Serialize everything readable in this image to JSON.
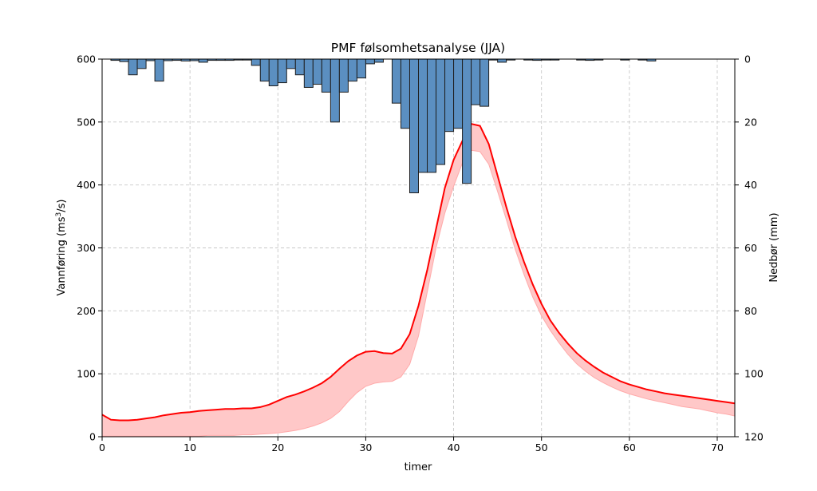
{
  "chart_data": {
    "type": "line",
    "title": "PMF følsomhetsanalyse (JJA)",
    "xlabel": "timer",
    "ylabel_left_prefix": "Vannføring (ms",
    "ylabel_left_sup": "3",
    "ylabel_left_suffix": "/s)",
    "ylabel_right": "Nedbør (mm)",
    "xlim": [
      0,
      72
    ],
    "ylim_left": [
      0,
      600
    ],
    "ylim_right": [
      0,
      120
    ],
    "right_axis_inverted": true,
    "x_ticks": [
      "0",
      "10",
      "20",
      "30",
      "40",
      "50",
      "60",
      "70"
    ],
    "y_left_ticks": [
      "0",
      "100",
      "200",
      "300",
      "400",
      "500",
      "600"
    ],
    "y_right_ticks": [
      "0",
      "20",
      "40",
      "60",
      "80",
      "100",
      "120"
    ],
    "grid": true,
    "colors": {
      "line": "#ff0000",
      "band": "#ffc8c8",
      "band_edge": "#ffaaaa",
      "bars": "#5b8fc1",
      "bar_edge": "#1f1f1f",
      "grid": "#c8c8c8"
    },
    "series": [
      {
        "kind": "line",
        "x": [
          0,
          1,
          2,
          3,
          4,
          5,
          6,
          7,
          8,
          9,
          10,
          11,
          12,
          13,
          14,
          15,
          16,
          17,
          18,
          19,
          20,
          21,
          22,
          23,
          24,
          25,
          26,
          27,
          28,
          29,
          30,
          31,
          32,
          33,
          34,
          35,
          36,
          37,
          38,
          39,
          40,
          41,
          42,
          43,
          44,
          45,
          46,
          47,
          48,
          49,
          50,
          51,
          52,
          53,
          54,
          55,
          56,
          57,
          58,
          59,
          60,
          61,
          62,
          63,
          64,
          65,
          66,
          67,
          68,
          69,
          70,
          71,
          72
        ],
        "y": [
          35,
          27,
          26,
          26,
          27,
          29,
          31,
          34,
          36,
          38,
          39,
          41,
          42,
          43,
          44,
          44,
          45,
          45,
          47,
          51,
          57,
          63,
          67,
          72,
          78,
          85,
          95,
          108,
          120,
          129,
          135,
          136,
          133,
          132,
          140,
          163,
          208,
          265,
          330,
          395,
          440,
          470,
          497,
          494,
          465,
          415,
          365,
          318,
          278,
          242,
          211,
          185,
          165,
          148,
          133,
          121,
          111,
          102,
          95,
          88,
          83,
          79,
          75,
          72,
          69,
          67,
          65,
          63,
          61,
          59,
          57,
          55,
          53
        ]
      },
      {
        "kind": "band",
        "x": [
          0,
          1,
          2,
          3,
          4,
          5,
          6,
          7,
          8,
          9,
          10,
          11,
          12,
          13,
          14,
          15,
          16,
          17,
          18,
          19,
          20,
          21,
          22,
          23,
          24,
          25,
          26,
          27,
          28,
          29,
          30,
          31,
          32,
          33,
          34,
          35,
          36,
          37,
          38,
          39,
          40,
          41,
          42,
          43,
          44,
          45,
          46,
          47,
          48,
          49,
          50,
          51,
          52,
          53,
          54,
          55,
          56,
          57,
          58,
          59,
          60,
          61,
          62,
          63,
          64,
          65,
          66,
          67,
          68,
          69,
          70,
          71,
          72
        ],
        "lower": [
          1,
          1,
          1,
          1,
          1,
          1,
          1,
          1,
          1,
          1,
          1,
          1,
          2,
          2,
          2,
          2,
          3,
          3,
          4,
          5,
          6,
          8,
          10,
          13,
          17,
          22,
          29,
          40,
          56,
          70,
          80,
          85,
          87,
          88,
          95,
          115,
          160,
          230,
          300,
          355,
          398,
          435,
          455,
          453,
          433,
          390,
          345,
          298,
          258,
          222,
          192,
          169,
          149,
          131,
          116,
          104,
          94,
          86,
          79,
          73,
          68,
          64,
          60,
          57,
          54,
          51,
          48,
          46,
          44,
          41,
          38,
          36,
          33
        ],
        "upper": [
          35,
          27,
          26,
          26,
          27,
          29,
          31,
          34,
          36,
          38,
          39,
          41,
          42,
          43,
          44,
          44,
          45,
          45,
          47,
          51,
          57,
          63,
          67,
          72,
          78,
          85,
          95,
          108,
          120,
          129,
          135,
          136,
          133,
          132,
          140,
          163,
          208,
          265,
          330,
          395,
          440,
          470,
          497,
          494,
          465,
          415,
          365,
          318,
          278,
          242,
          211,
          185,
          165,
          148,
          133,
          121,
          111,
          102,
          95,
          88,
          83,
          79,
          75,
          72,
          69,
          67,
          65,
          63,
          61,
          59,
          57,
          55,
          53
        ]
      },
      {
        "kind": "bar",
        "axis": "right",
        "x_start": [
          0,
          1,
          2,
          3,
          4,
          5,
          6,
          7,
          8,
          9,
          10,
          11,
          12,
          13,
          14,
          15,
          16,
          17,
          18,
          19,
          20,
          21,
          22,
          23,
          24,
          25,
          26,
          27,
          28,
          29,
          30,
          31,
          32,
          33,
          34,
          35,
          36,
          37,
          38,
          39,
          40,
          41,
          42,
          43,
          44,
          45,
          46,
          47,
          48,
          49,
          50,
          51,
          52,
          53,
          54,
          55,
          56,
          57,
          58,
          59,
          60,
          61,
          62,
          63,
          64,
          65,
          66,
          67,
          68,
          69,
          70,
          71
        ],
        "values": [
          0,
          0.4,
          0.8,
          5,
          3,
          0.5,
          7,
          0.5,
          0.4,
          0.6,
          0.5,
          1,
          0.4,
          0.4,
          0.4,
          0.3,
          0.3,
          2,
          7,
          8.5,
          7.5,
          3,
          5,
          9,
          8,
          10.5,
          20,
          10.5,
          7,
          6,
          1.5,
          1,
          0,
          14,
          22,
          42.5,
          36,
          36,
          33.5,
          23,
          22,
          39.5,
          14.5,
          15,
          0.3,
          1,
          0.3,
          0,
          0.3,
          0.4,
          0.3,
          0.3,
          0,
          0,
          0.3,
          0.4,
          0.3,
          0,
          0,
          0.3,
          0,
          0.3,
          0.6,
          0,
          0,
          0,
          0,
          0,
          0,
          0,
          0,
          0
        ]
      }
    ]
  }
}
